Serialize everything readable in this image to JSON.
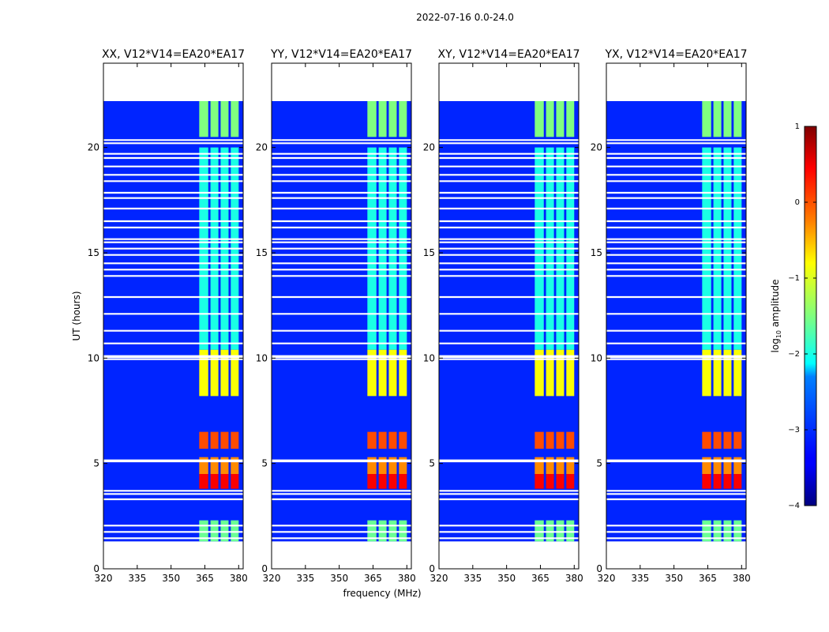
{
  "chart_data": {
    "type": "heatmap",
    "suptitle": "2022-07-16 0.0-24.0",
    "xlabel": "frequency (MHz)",
    "ylabel": "UT (hours)",
    "xlim": [
      320,
      382
    ],
    "ylim": [
      0,
      24
    ],
    "xticks": [
      320,
      335,
      350,
      365,
      380
    ],
    "yticks": [
      0,
      5,
      10,
      15,
      20
    ],
    "colorbar": {
      "label": "log10 amplitude",
      "label_prefix": "log",
      "label_sub": "10",
      "label_suffix": " amplitude",
      "min": -4,
      "max": 1,
      "ticks": [
        -4,
        -3,
        -2,
        -1,
        0,
        1
      ],
      "colormap": "jet"
    },
    "panels": [
      {
        "title": "XX, V12*V14=EA20*EA17"
      },
      {
        "title": "YY, V12*V14=EA20*EA17"
      },
      {
        "title": "XY, V12*V14=EA20*EA17"
      },
      {
        "title": "YX, V12*V14=EA20*EA17"
      }
    ],
    "data_extent_hours": [
      1.3,
      22.2
    ],
    "background_log_amplitude": -3.2,
    "rfi_band_mhz": [
      362.5,
      380
    ],
    "rfi_subbands_mhz": [
      [
        362.5,
        366.5
      ],
      [
        367.5,
        371.0
      ],
      [
        372.0,
        375.5
      ],
      [
        376.5,
        380.0
      ]
    ],
    "rfi_level": [
      {
        "t0": 3.8,
        "t1": 4.5,
        "level": 0.4
      },
      {
        "t0": 4.5,
        "t1": 5.3,
        "level": -0.3
      },
      {
        "t0": 5.7,
        "t1": 6.5,
        "level": 0.0
      },
      {
        "t0": 8.2,
        "t1": 10.4,
        "level": -0.9
      },
      {
        "t0": 1.3,
        "t1": 2.3,
        "level": -1.6
      },
      {
        "t0": 20.5,
        "t1": 22.2,
        "level": -1.5
      },
      {
        "t0": 10.4,
        "t1": 20.0,
        "level": -2.0
      }
    ],
    "flagged_hours": [
      1.45,
      1.75,
      2.05,
      3.3,
      3.55,
      3.7,
      5.1,
      5.15,
      9.95,
      10.05,
      10.1,
      10.7,
      11.3,
      12.1,
      12.9,
      13.9,
      14.2,
      14.5,
      14.9,
      15.2,
      15.5,
      15.65,
      16.2,
      16.5,
      17.1,
      17.6,
      17.85,
      18.4,
      18.7,
      19.1,
      19.5,
      19.7,
      20.2,
      20.35
    ]
  }
}
